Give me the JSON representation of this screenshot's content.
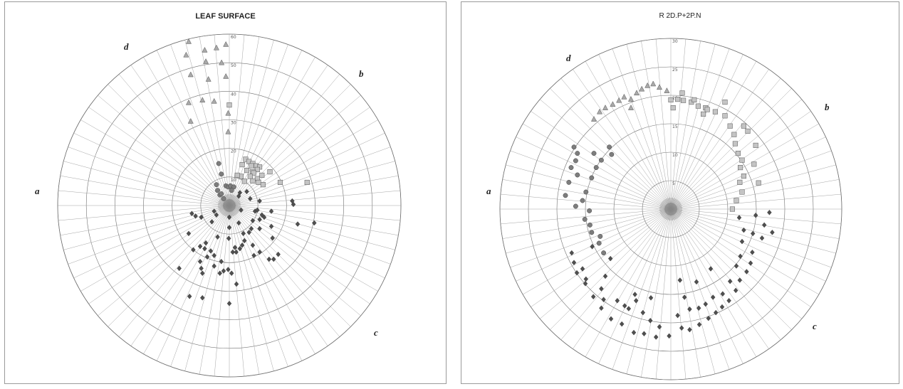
{
  "chart_data": [
    {
      "type": "scatter",
      "subtype": "polar",
      "title": "LEAF SURFACE",
      "rings": [
        10,
        20,
        30,
        40,
        50,
        60
      ],
      "rmax": 60,
      "ring_tick_labels": [
        "10",
        "20",
        "30",
        "40",
        "50",
        "60"
      ],
      "spokes": 72,
      "quadrants": [
        {
          "label": "a",
          "side": "left"
        },
        {
          "label": "b",
          "side": "top-right"
        },
        {
          "label": "c",
          "side": "bottom-right"
        },
        {
          "label": "d",
          "side": "top-left"
        }
      ],
      "marker_colors": {
        "triangle": "#a9a9a9",
        "square": "#c4c4c4",
        "circle": "#7d7d7d",
        "diamond": "#4f4f4f"
      },
      "series": [
        {
          "marker": "triangle",
          "points": [
            [
              -14.2,
              57.4
            ],
            [
              -8.6,
              54.4
            ],
            [
              -4.5,
              55.2
            ],
            [
              -1.2,
              56.4
            ],
            [
              -15.1,
              52.7
            ],
            [
              -8.2,
              50.4
            ],
            [
              -2.7,
              50.0
            ],
            [
              -13.5,
              45.8
            ],
            [
              -7.3,
              44.2
            ],
            [
              -1.2,
              45.2
            ],
            [
              -14.2,
              36.0
            ],
            [
              -9.4,
              36.9
            ],
            [
              -5.3,
              36.5
            ],
            [
              -0.4,
              32.3
            ],
            [
              -13.5,
              29.5
            ],
            [
              -0.4,
              25.8
            ]
          ]
        },
        {
          "marker": "square",
          "points": [
            [
              0.0,
              35.2
            ],
            [
              5.7,
              16.2
            ],
            [
              6.9,
              15.4
            ],
            [
              8.2,
              14.7
            ],
            [
              4.5,
              14.3
            ],
            [
              7.7,
              13.9
            ],
            [
              9.4,
              13.9
            ],
            [
              10.6,
              13.5
            ],
            [
              9.8,
              12.6
            ],
            [
              6.1,
              12.3
            ],
            [
              8.2,
              11.8
            ],
            [
              8.5,
              11.4
            ],
            [
              14.2,
              11.8
            ],
            [
              7.3,
              10.2
            ],
            [
              11.4,
              10.6
            ],
            [
              9.8,
              9.4
            ],
            [
              4.1,
              10.2
            ],
            [
              2.8,
              10.6
            ],
            [
              5.3,
              8.5
            ],
            [
              8.2,
              8.6
            ],
            [
              10.2,
              8.1
            ],
            [
              11.8,
              7.3
            ],
            [
              17.8,
              8.1
            ],
            [
              27.2,
              8.1
            ]
          ]
        },
        {
          "marker": "circle",
          "points": [
            [
              -3.7,
              14.7
            ],
            [
              -2.8,
              11.0
            ],
            [
              -4.5,
              7.3
            ],
            [
              -4.1,
              5.3
            ],
            [
              -3.3,
              3.7
            ],
            [
              -2.0,
              2.4
            ],
            [
              -1.2,
              6.9
            ],
            [
              -0.4,
              6.5
            ],
            [
              0.4,
              6.9
            ],
            [
              1.6,
              6.5
            ],
            [
              0.8,
              5.3
            ],
            [
              -2.8,
              4.1
            ]
          ]
        },
        {
          "marker": "diamond",
          "points": [
            [
              -14.2,
              -9.8
            ],
            [
              -12.6,
              -15.5
            ],
            [
              -17.5,
              -22.0
            ],
            [
              -10.2,
              -14.3
            ],
            [
              -8.2,
              -13.1
            ],
            [
              -4.1,
              -11.0
            ],
            [
              -8.6,
              -15.1
            ],
            [
              -10.2,
              -19.6
            ],
            [
              -7.7,
              -18.0
            ],
            [
              -6.5,
              -15.9
            ],
            [
              -5.3,
              -17.5
            ],
            [
              -9.8,
              -22.0
            ],
            [
              -9.4,
              -23.7
            ],
            [
              -5.3,
              -21.2
            ],
            [
              -2.8,
              -19.6
            ],
            [
              -2.0,
              -22.9
            ],
            [
              -3.3,
              -23.7
            ],
            [
              -0.4,
              -22.4
            ],
            [
              0.8,
              -23.7
            ],
            [
              1.2,
              -16.3
            ],
            [
              2.0,
              -14.7
            ],
            [
              2.4,
              -16.3
            ],
            [
              3.7,
              -15.1
            ],
            [
              4.5,
              -13.9
            ],
            [
              5.3,
              -12.3
            ],
            [
              7.7,
              -8.1
            ],
            [
              10.6,
              -8.1
            ],
            [
              8.2,
              -5.3
            ],
            [
              10.6,
              -4.9
            ],
            [
              12.2,
              -4.1
            ],
            [
              14.7,
              -7.3
            ],
            [
              11.4,
              -3.3
            ],
            [
              9.0,
              -2.0
            ],
            [
              14.7,
              -2.0
            ],
            [
              9.8,
              -1.6
            ],
            [
              7.3,
              2.4
            ],
            [
              10.6,
              1.6
            ],
            [
              6.1,
              4.9
            ],
            [
              3.7,
              4.5
            ],
            [
              3.3,
              3.3
            ],
            [
              0.0,
              -7.7
            ],
            [
              0.0,
              -4.1
            ],
            [
              3.3,
              -6.1
            ],
            [
              4.1,
              -1.6
            ],
            [
              4.9,
              -9.8
            ],
            [
              6.9,
              -9.4
            ],
            [
              8.2,
              -13.9
            ],
            [
              8.6,
              -17.5
            ],
            [
              10.6,
              -16.3
            ],
            [
              13.9,
              -18.8
            ],
            [
              15.5,
              -18.8
            ],
            [
              17.1,
              -17.1
            ],
            [
              15.1,
              -11.4
            ],
            [
              23.9,
              -6.5
            ],
            [
              22.4,
              0.4
            ],
            [
              22.0,
              1.6
            ],
            [
              29.7,
              -6.1
            ],
            [
              -13.1,
              -2.8
            ],
            [
              -9.8,
              -4.1
            ],
            [
              -6.1,
              -5.7
            ],
            [
              -4.5,
              -3.3
            ],
            [
              -5.3,
              -2.0
            ],
            [
              -13.9,
              -31.8
            ],
            [
              -9.4,
              -32.3
            ],
            [
              0.0,
              -34.3
            ],
            [
              -11.8,
              -3.7
            ],
            [
              -0.2,
              -11.5
            ],
            [
              2.5,
              -27.5
            ]
          ]
        }
      ]
    },
    {
      "type": "scatter",
      "subtype": "polar",
      "title": "R 2D.P+2P.N",
      "rings": [
        5,
        10,
        15,
        20,
        25,
        30
      ],
      "rmax": 30,
      "ring_tick_labels": [
        "5",
        "10",
        "15",
        "20",
        "25",
        "30"
      ],
      "spokes": 72,
      "quadrants": [
        {
          "label": "a",
          "side": "left"
        },
        {
          "label": "b",
          "side": "top-right"
        },
        {
          "label": "c",
          "side": "bottom-right"
        },
        {
          "label": "d",
          "side": "top-left"
        }
      ],
      "marker_colors": {
        "triangle": "#a9a9a9",
        "square": "#c4c4c4",
        "circle": "#7d7d7d",
        "diamond": "#4f4f4f"
      },
      "series": [
        {
          "marker": "triangle",
          "points": [
            [
              -13.5,
              15.8
            ],
            [
              -12.5,
              17.1
            ],
            [
              -11.5,
              17.8
            ],
            [
              -10.2,
              18.4
            ],
            [
              -9.1,
              19.1
            ],
            [
              -8.2,
              19.7
            ],
            [
              -7.0,
              19.3
            ],
            [
              -6.0,
              20.4
            ],
            [
              -5.1,
              21.1
            ],
            [
              -4.1,
              21.7
            ],
            [
              -3.1,
              22.0
            ],
            [
              -2.0,
              21.4
            ],
            [
              -0.7,
              20.8
            ],
            [
              -7.0,
              17.8
            ]
          ]
        },
        {
          "marker": "square",
          "points": [
            [
              0.0,
              19.2
            ],
            [
              1.2,
              19.3
            ],
            [
              2.2,
              19.1
            ],
            [
              3.6,
              18.8
            ],
            [
              4.8,
              18.1
            ],
            [
              6.1,
              17.8
            ],
            [
              7.8,
              17.1
            ],
            [
              9.5,
              16.4
            ],
            [
              10.4,
              14.6
            ],
            [
              11.1,
              13.1
            ],
            [
              11.3,
              11.5
            ],
            [
              11.8,
              9.8
            ],
            [
              12.5,
              8.6
            ],
            [
              12.2,
              7.3
            ],
            [
              12.8,
              5.8
            ],
            [
              12.1,
              4.7
            ],
            [
              12.5,
              3.0
            ],
            [
              11.5,
              1.5
            ],
            [
              10.8,
              0.0
            ],
            [
              14.9,
              11.2
            ],
            [
              12.8,
              14.6
            ],
            [
              9.5,
              18.8
            ],
            [
              6.4,
              17.5
            ],
            [
              4.1,
              19.2
            ],
            [
              2.0,
              20.4
            ],
            [
              0.4,
              17.8
            ],
            [
              5.7,
              16.7
            ],
            [
              13.5,
              13.7
            ],
            [
              14.6,
              7.9
            ],
            [
              15.4,
              4.6
            ]
          ]
        },
        {
          "marker": "circle",
          "points": [
            [
              -17.0,
              10.9
            ],
            [
              -16.4,
              9.8
            ],
            [
              -16.7,
              8.5
            ],
            [
              -17.5,
              7.3
            ],
            [
              -16.4,
              6.0
            ],
            [
              -17.9,
              4.7
            ],
            [
              -18.5,
              2.4
            ],
            [
              -15.5,
              1.5
            ],
            [
              -16.7,
              0.5
            ],
            [
              -14.3,
              -0.3
            ],
            [
              -15.1,
              -1.8
            ],
            [
              -14.2,
              -2.8
            ],
            [
              -13.9,
              -4.1
            ],
            [
              -12.4,
              -4.8
            ],
            [
              -12.6,
              -6.0
            ],
            [
              -11.8,
              -7.7
            ],
            [
              -13.5,
              9.8
            ],
            [
              -12.2,
              8.6
            ],
            [
              -10.8,
              10.9
            ],
            [
              -10.4,
              9.6
            ],
            [
              -13.1,
              7.3
            ],
            [
              -13.9,
              5.5
            ],
            [
              -14.9,
              3.0
            ]
          ]
        },
        {
          "marker": "diamond",
          "points": [
            [
              16.0,
              -5.1
            ],
            [
              14.3,
              -7.6
            ],
            [
              14.0,
              -9.5
            ],
            [
              13.3,
              -11.0
            ],
            [
              12.1,
              -12.5
            ],
            [
              11.4,
              -14.3
            ],
            [
              10.2,
              -16.1
            ],
            [
              9.0,
              -17.2
            ],
            [
              7.9,
              -18.2
            ],
            [
              6.6,
              -19.2
            ],
            [
              5.0,
              -20.3
            ],
            [
              3.3,
              -21.2
            ],
            [
              1.9,
              -20.9
            ],
            [
              -0.3,
              -22.3
            ],
            [
              -2.6,
              -22.5
            ],
            [
              -4.7,
              -21.9
            ],
            [
              -6.5,
              -21.7
            ],
            [
              -8.6,
              -20.2
            ],
            [
              -10.5,
              -19.3
            ],
            [
              -12.2,
              -17.4
            ],
            [
              -13.6,
              -15.4
            ],
            [
              -15.0,
              -13.1
            ],
            [
              -16.5,
              -11.2
            ],
            [
              -17.0,
              -9.4
            ],
            [
              -17.4,
              -7.7
            ],
            [
              -15.5,
              -10.5
            ],
            [
              -14.9,
              -12.3
            ],
            [
              -12.2,
              -14.0
            ],
            [
              -11.8,
              -15.9
            ],
            [
              -9.4,
              -16.1
            ],
            [
              -7.4,
              -17.5
            ],
            [
              -6.1,
              -16.1
            ],
            [
              -4.9,
              -18.2
            ],
            [
              -3.6,
              -19.6
            ],
            [
              -2.0,
              -20.7
            ],
            [
              1.2,
              -18.7
            ],
            [
              2.4,
              -15.5
            ],
            [
              3.3,
              -17.6
            ],
            [
              4.9,
              -17.4
            ],
            [
              6.1,
              -16.7
            ],
            [
              7.4,
              -15.5
            ],
            [
              9.1,
              -14.9
            ],
            [
              10.4,
              -12.7
            ],
            [
              11.5,
              -10.0
            ],
            [
              12.2,
              -8.3
            ],
            [
              12.5,
              -5.7
            ],
            [
              12.8,
              -3.7
            ],
            [
              14.9,
              -1.1
            ],
            [
              16.4,
              -2.8
            ],
            [
              17.8,
              -4.1
            ],
            [
              -11.5,
              -11.8
            ],
            [
              -13.8,
              -6.6
            ],
            [
              -10.6,
              -8.7
            ],
            [
              -8.1,
              -17.0
            ],
            [
              -6.3,
              -15.0
            ],
            [
              -3.5,
              -15.6
            ],
            [
              1.6,
              -12.5
            ],
            [
              4.5,
              -12.8
            ],
            [
              7.0,
              -10.5
            ],
            [
              12.0,
              -1.5
            ],
            [
              14.4,
              -4.3
            ],
            [
              17.3,
              -0.6
            ]
          ]
        }
      ]
    }
  ]
}
